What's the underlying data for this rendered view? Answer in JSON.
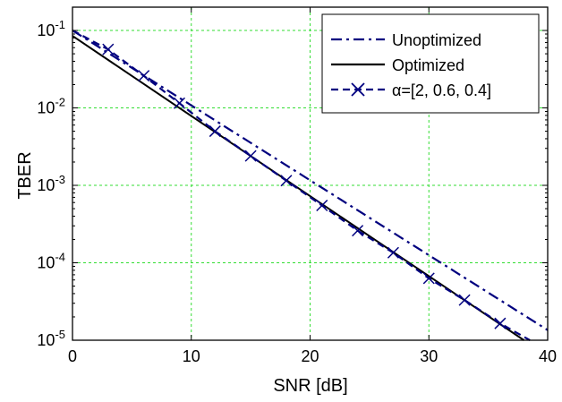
{
  "chart_data": {
    "type": "line",
    "title": "",
    "xlabel": "SNR [dB]",
    "ylabel": "TBER",
    "xlim": [
      0,
      40
    ],
    "ylim": [
      1e-05,
      0.2
    ],
    "yscale": "log",
    "grid": true,
    "legend_position": "top-right",
    "x_ticks": [
      0,
      10,
      20,
      30,
      40
    ],
    "x_tick_labels": [
      "0",
      "10",
      "20",
      "30",
      "40"
    ],
    "y_ticks": [
      {
        "value": 1e-05,
        "mantissa": "10",
        "exponent": "-5"
      },
      {
        "value": 0.0001,
        "mantissa": "10",
        "exponent": "-4"
      },
      {
        "value": 0.001,
        "mantissa": "10",
        "exponent": "-3"
      },
      {
        "value": 0.01,
        "mantissa": "10",
        "exponent": "-2"
      },
      {
        "value": 0.1,
        "mantissa": "10",
        "exponent": "-1"
      }
    ],
    "series": [
      {
        "name": "Unoptimized",
        "style": "dash-dot",
        "color": "#00007f",
        "marker": "none",
        "x": [
          0,
          40
        ],
        "y": [
          0.1,
          1.35e-05
        ]
      },
      {
        "name": "Optimized",
        "style": "solid",
        "color": "#000000",
        "marker": "none",
        "x": [
          0,
          38
        ],
        "y": [
          0.085,
          1e-05
        ]
      },
      {
        "name": "α=[2, 0.6, 0.4]",
        "style": "dashed",
        "color": "#00007f",
        "marker": "x",
        "x": [
          0,
          3,
          6,
          9,
          12,
          15,
          18,
          21,
          24,
          27,
          30,
          33,
          36,
          38.5
        ],
        "y": [
          0.1,
          0.057,
          0.026,
          0.0115,
          0.005,
          0.0024,
          0.00115,
          0.00055,
          0.00026,
          0.000135,
          6.3e-05,
          3.3e-05,
          1.65e-05,
          1e-05
        ],
        "marker_x": [
          3,
          6,
          9,
          12,
          15,
          18,
          21,
          24,
          27,
          30,
          33,
          36
        ]
      }
    ]
  },
  "colors": {
    "grid": "#33dd33",
    "axis": "#000000",
    "background": "#ffffff"
  }
}
